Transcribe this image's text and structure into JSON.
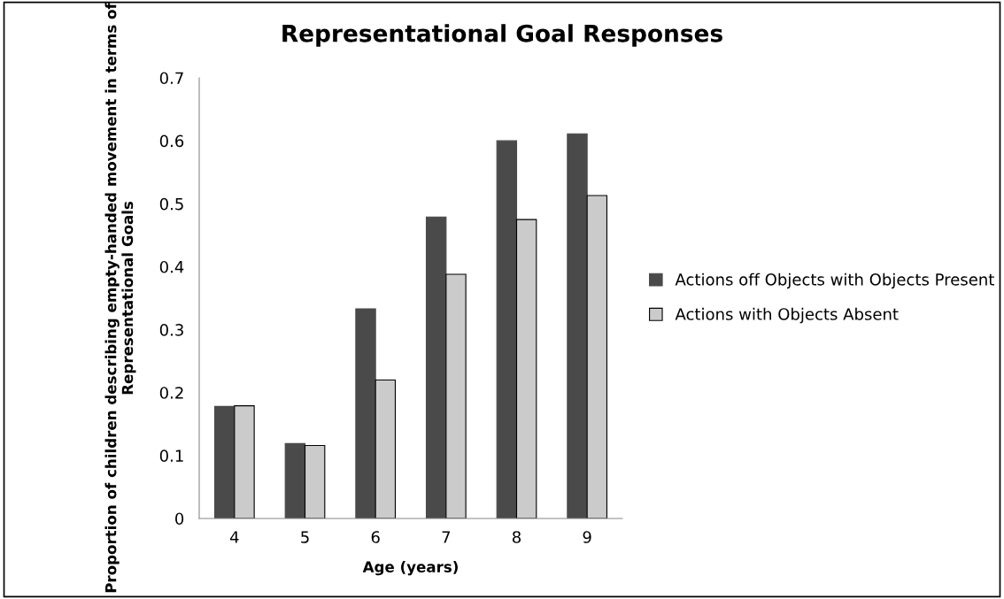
{
  "chart_data": {
    "type": "bar",
    "title": "Representational Goal Responses",
    "xlabel": "Age (years)",
    "ylabel": "Proportion of children describing empty-handed movement in terms of Representational Goals",
    "categories": [
      "4",
      "5",
      "6",
      "7",
      "8",
      "9"
    ],
    "series": [
      {
        "name": "Actions off Objects with Objects Present",
        "color": "#4a4a4a",
        "values": [
          0.178,
          0.119,
          0.333,
          0.479,
          0.6,
          0.611
        ]
      },
      {
        "name": "Actions with Objects Absent",
        "color": "#cbcbcb",
        "values": [
          0.179,
          0.116,
          0.22,
          0.388,
          0.475,
          0.513
        ]
      }
    ],
    "ylim": [
      0,
      0.7
    ],
    "yticks": [
      {
        "value": 0,
        "label": "0"
      },
      0.1,
      0.2,
      0.3,
      0.4,
      0.5,
      0.6,
      0.7
    ],
    "grid": false,
    "legend": "right"
  }
}
